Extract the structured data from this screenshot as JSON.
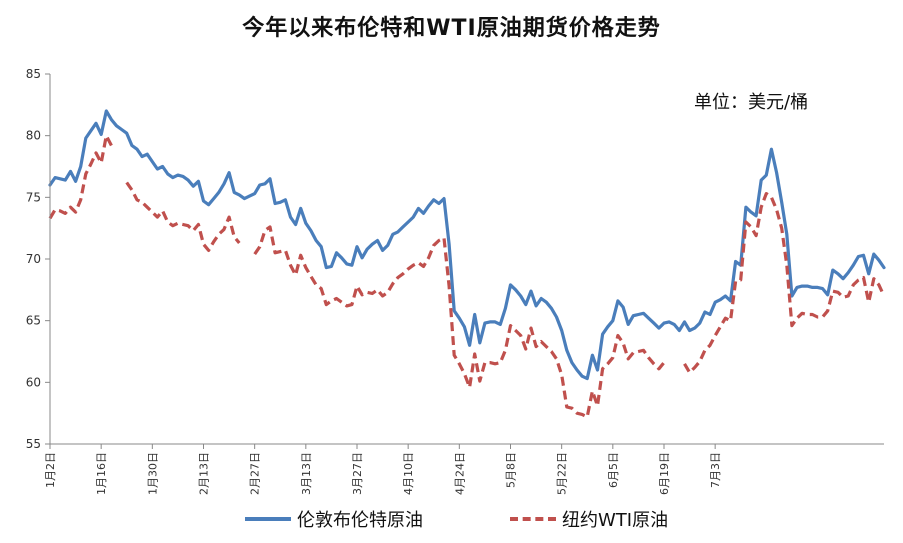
{
  "chart_data": {
    "type": "line",
    "title": "今年以来布伦特和WTI原油期货价格走势",
    "unit": "单位：美元/桶",
    "ylim": [
      55,
      85
    ],
    "yticks": [
      "55",
      "60",
      "65",
      "70",
      "75",
      "80",
      "85"
    ],
    "xtick_labels": [
      "1月2日",
      "1月16日",
      "1月30日",
      "2月13日",
      "2月27日",
      "3月13日",
      "3月27日",
      "4月10日",
      "4月24日",
      "5月8日",
      "5月22日",
      "6月5日",
      "6月19日",
      "7月3日"
    ],
    "grid": false,
    "legend_position": "bottom",
    "series": [
      {
        "name": "伦敦布伦特原油",
        "color": "#4a7ebb",
        "style": "solid",
        "values": [
          [
            0,
            76.0
          ],
          [
            1,
            76.6
          ],
          [
            2,
            76.5
          ],
          [
            3,
            76.4
          ],
          [
            4,
            77.1
          ],
          [
            5,
            76.3
          ],
          [
            6,
            77.5
          ],
          [
            7,
            79.8
          ],
          [
            8,
            80.4
          ],
          [
            9,
            81.0
          ],
          [
            10,
            80.1
          ],
          [
            11,
            82.0
          ],
          [
            12,
            81.3
          ],
          [
            13,
            80.8
          ],
          [
            14,
            80.5
          ],
          [
            15,
            80.2
          ],
          [
            16,
            79.2
          ],
          [
            17,
            78.9
          ],
          [
            18,
            78.3
          ],
          [
            19,
            78.5
          ],
          [
            20,
            77.9
          ],
          [
            21,
            77.3
          ],
          [
            22,
            77.5
          ],
          [
            23,
            76.9
          ],
          [
            24,
            76.6
          ],
          [
            25,
            76.8
          ],
          [
            26,
            76.7
          ],
          [
            27,
            76.4
          ],
          [
            28,
            75.9
          ],
          [
            29,
            76.3
          ],
          [
            30,
            74.7
          ],
          [
            31,
            74.4
          ],
          [
            32,
            74.9
          ],
          [
            33,
            75.4
          ],
          [
            34,
            76.1
          ],
          [
            35,
            77.0
          ],
          [
            36,
            75.4
          ],
          [
            37,
            75.2
          ],
          [
            38,
            74.9
          ],
          [
            39,
            75.1
          ],
          [
            40,
            75.3
          ],
          [
            41,
            76.0
          ],
          [
            42,
            76.1
          ],
          [
            43,
            76.5
          ],
          [
            44,
            74.5
          ],
          [
            45,
            74.6
          ],
          [
            46,
            74.8
          ],
          [
            47,
            73.4
          ],
          [
            48,
            72.8
          ],
          [
            49,
            74.1
          ],
          [
            50,
            72.9
          ],
          [
            51,
            72.3
          ],
          [
            52,
            71.5
          ],
          [
            53,
            71.0
          ],
          [
            54,
            69.3
          ],
          [
            55,
            69.4
          ],
          [
            56,
            70.5
          ],
          [
            57,
            70.1
          ],
          [
            58,
            69.6
          ],
          [
            59,
            69.5
          ],
          [
            60,
            71.0
          ],
          [
            61,
            70.1
          ],
          [
            62,
            70.8
          ],
          [
            63,
            71.2
          ],
          [
            64,
            71.5
          ],
          [
            65,
            70.7
          ],
          [
            66,
            71.1
          ],
          [
            67,
            72.0
          ],
          [
            68,
            72.2
          ],
          [
            69,
            72.6
          ],
          [
            70,
            73.0
          ],
          [
            71,
            73.4
          ],
          [
            72,
            74.1
          ],
          [
            73,
            73.7
          ],
          [
            74,
            74.3
          ],
          [
            75,
            74.8
          ],
          [
            76,
            74.5
          ],
          [
            77,
            74.9
          ],
          [
            78,
            71.2
          ],
          [
            79,
            65.8
          ],
          [
            80,
            65.2
          ],
          [
            81,
            64.5
          ],
          [
            82,
            63.0
          ],
          [
            83,
            65.5
          ],
          [
            84,
            63.2
          ],
          [
            85,
            64.8
          ],
          [
            86,
            64.9
          ],
          [
            87,
            64.9
          ],
          [
            88,
            64.7
          ],
          [
            89,
            66.0
          ],
          [
            90,
            67.9
          ],
          [
            91,
            67.5
          ],
          [
            92,
            67.0
          ],
          [
            93,
            66.3
          ],
          [
            94,
            67.4
          ],
          [
            95,
            66.2
          ],
          [
            96,
            66.8
          ],
          [
            97,
            66.5
          ],
          [
            98,
            66.0
          ],
          [
            99,
            65.3
          ],
          [
            100,
            64.2
          ],
          [
            101,
            62.6
          ],
          [
            102,
            61.6
          ],
          [
            103,
            61.0
          ],
          [
            104,
            60.5
          ],
          [
            105,
            60.3
          ],
          [
            106,
            62.2
          ],
          [
            107,
            61.0
          ],
          [
            108,
            63.9
          ],
          [
            109,
            64.5
          ],
          [
            110,
            65.0
          ],
          [
            111,
            66.6
          ],
          [
            112,
            66.1
          ],
          [
            113,
            64.7
          ],
          [
            114,
            65.4
          ],
          [
            115,
            65.5
          ],
          [
            116,
            65.6
          ],
          [
            117,
            65.2
          ],
          [
            118,
            64.8
          ],
          [
            119,
            64.4
          ],
          [
            120,
            64.8
          ],
          [
            121,
            64.9
          ],
          [
            122,
            64.7
          ],
          [
            123,
            64.2
          ],
          [
            124,
            64.9
          ],
          [
            125,
            64.2
          ],
          [
            126,
            64.4
          ],
          [
            127,
            64.8
          ],
          [
            128,
            65.7
          ],
          [
            129,
            65.5
          ],
          [
            130,
            66.5
          ],
          [
            131,
            66.7
          ],
          [
            132,
            67.0
          ],
          [
            133,
            66.6
          ],
          [
            134,
            69.8
          ],
          [
            135,
            69.5
          ],
          [
            136,
            74.2
          ],
          [
            137,
            73.8
          ],
          [
            138,
            73.5
          ],
          [
            139,
            76.4
          ],
          [
            140,
            76.8
          ],
          [
            141,
            78.9
          ],
          [
            142,
            77.0
          ],
          [
            143,
            74.6
          ],
          [
            144,
            72.0
          ],
          [
            145,
            67.0
          ],
          [
            146,
            67.7
          ],
          [
            147,
            67.8
          ],
          [
            148,
            67.8
          ],
          [
            149,
            67.7
          ],
          [
            150,
            67.7
          ],
          [
            151,
            67.6
          ],
          [
            152,
            67.1
          ],
          [
            153,
            69.1
          ],
          [
            154,
            68.8
          ],
          [
            155,
            68.4
          ],
          [
            156,
            68.9
          ],
          [
            157,
            69.5
          ],
          [
            158,
            70.2
          ],
          [
            159,
            70.3
          ],
          [
            160,
            68.8
          ],
          [
            161,
            70.4
          ],
          [
            162,
            69.9
          ],
          [
            163,
            69.3
          ]
        ]
      },
      {
        "name": "纽约WTI原油",
        "color": "#c0504d",
        "style": "dashed",
        "values": [
          [
            0,
            73.3
          ],
          [
            1,
            74.0
          ],
          [
            2,
            73.9
          ],
          [
            3,
            73.7
          ],
          [
            4,
            74.2
          ],
          [
            5,
            73.8
          ],
          [
            6,
            74.8
          ],
          [
            7,
            76.9
          ],
          [
            8,
            77.7
          ],
          [
            9,
            78.6
          ],
          [
            10,
            77.8
          ],
          [
            11,
            80.0
          ],
          [
            12,
            79.2
          ],
          [
            14,
            null
          ],
          [
            15,
            76.2
          ],
          [
            16,
            75.6
          ],
          [
            17,
            74.8
          ],
          [
            18,
            74.6
          ],
          [
            19,
            74.2
          ],
          [
            20,
            73.8
          ],
          [
            21,
            73.4
          ],
          [
            22,
            73.9
          ],
          [
            23,
            73.0
          ],
          [
            24,
            72.7
          ],
          [
            25,
            72.9
          ],
          [
            26,
            72.8
          ],
          [
            27,
            72.7
          ],
          [
            28,
            72.3
          ],
          [
            29,
            72.8
          ],
          [
            30,
            71.2
          ],
          [
            31,
            70.7
          ],
          [
            32,
            71.4
          ],
          [
            33,
            72.0
          ],
          [
            34,
            72.4
          ],
          [
            35,
            73.4
          ],
          [
            36,
            71.8
          ],
          [
            37,
            71.3
          ],
          [
            39,
            null
          ],
          [
            40,
            70.4
          ],
          [
            41,
            71.0
          ],
          [
            42,
            72.3
          ],
          [
            43,
            72.6
          ],
          [
            44,
            70.5
          ],
          [
            45,
            70.6
          ],
          [
            46,
            70.7
          ],
          [
            47,
            69.5
          ],
          [
            48,
            68.7
          ],
          [
            49,
            70.3
          ],
          [
            50,
            69.3
          ],
          [
            51,
            68.6
          ],
          [
            52,
            67.9
          ],
          [
            53,
            67.6
          ],
          [
            54,
            66.3
          ],
          [
            55,
            66.6
          ],
          [
            56,
            66.8
          ],
          [
            57,
            66.5
          ],
          [
            58,
            66.2
          ],
          [
            59,
            66.3
          ],
          [
            60,
            67.8
          ],
          [
            61,
            67.1
          ],
          [
            62,
            67.3
          ],
          [
            63,
            67.2
          ],
          [
            64,
            67.5
          ],
          [
            65,
            67.0
          ],
          [
            66,
            67.3
          ],
          [
            67,
            68.0
          ],
          [
            68,
            68.5
          ],
          [
            69,
            68.8
          ],
          [
            70,
            69.2
          ],
          [
            71,
            69.5
          ],
          [
            72,
            69.7
          ],
          [
            73,
            69.4
          ],
          [
            74,
            70.1
          ],
          [
            75,
            71.1
          ],
          [
            76,
            71.5
          ],
          [
            77,
            71.7
          ],
          [
            78,
            67.8
          ],
          [
            79,
            62.2
          ],
          [
            80,
            61.5
          ],
          [
            81,
            60.7
          ],
          [
            82,
            59.6
          ],
          [
            83,
            62.3
          ],
          [
            84,
            60.1
          ],
          [
            85,
            61.6
          ],
          [
            86,
            61.6
          ],
          [
            87,
            61.5
          ],
          [
            88,
            61.6
          ],
          [
            89,
            62.6
          ],
          [
            90,
            64.6
          ],
          [
            91,
            64.2
          ],
          [
            92,
            63.8
          ],
          [
            93,
            62.7
          ],
          [
            94,
            64.4
          ],
          [
            95,
            62.9
          ],
          [
            96,
            63.3
          ],
          [
            97,
            62.9
          ],
          [
            98,
            62.5
          ],
          [
            99,
            61.9
          ],
          [
            100,
            60.6
          ],
          [
            101,
            58.0
          ],
          [
            102,
            57.9
          ],
          [
            103,
            57.5
          ],
          [
            104,
            57.4
          ],
          [
            105,
            57.2
          ],
          [
            106,
            59.3
          ],
          [
            107,
            58.1
          ],
          [
            108,
            61.1
          ],
          [
            109,
            61.5
          ],
          [
            110,
            62.0
          ],
          [
            111,
            63.8
          ],
          [
            112,
            63.2
          ],
          [
            113,
            61.9
          ],
          [
            114,
            62.4
          ],
          [
            115,
            62.5
          ],
          [
            116,
            62.6
          ],
          [
            117,
            62.0
          ],
          [
            118,
            61.5
          ],
          [
            119,
            61.1
          ],
          [
            120,
            61.6
          ],
          [
            121,
            null
          ],
          [
            124,
            61.5
          ],
          [
            125,
            60.8
          ],
          [
            126,
            61.2
          ],
          [
            127,
            61.7
          ],
          [
            128,
            62.6
          ],
          [
            129,
            63.0
          ],
          [
            130,
            63.8
          ],
          [
            131,
            64.5
          ],
          [
            132,
            65.2
          ],
          [
            133,
            65.0
          ],
          [
            134,
            68.2
          ],
          [
            135,
            68.3
          ],
          [
            136,
            73.0
          ],
          [
            137,
            72.6
          ],
          [
            138,
            71.9
          ],
          [
            139,
            74.2
          ],
          [
            140,
            75.3
          ],
          [
            141,
            75.0
          ],
          [
            142,
            74.0
          ],
          [
            143,
            72.5
          ],
          [
            144,
            69.5
          ],
          [
            145,
            64.6
          ],
          [
            146,
            65.2
          ],
          [
            147,
            65.6
          ],
          [
            148,
            65.5
          ],
          [
            149,
            65.5
          ],
          [
            150,
            65.3
          ],
          [
            151,
            65.3
          ],
          [
            152,
            65.8
          ],
          [
            153,
            67.4
          ],
          [
            154,
            67.3
          ],
          [
            155,
            66.9
          ],
          [
            156,
            67.0
          ],
          [
            157,
            67.9
          ],
          [
            158,
            68.3
          ],
          [
            159,
            68.5
          ],
          [
            160,
            66.5
          ],
          [
            161,
            68.4
          ],
          [
            162,
            67.9
          ],
          [
            163,
            67.0
          ]
        ]
      }
    ]
  }
}
